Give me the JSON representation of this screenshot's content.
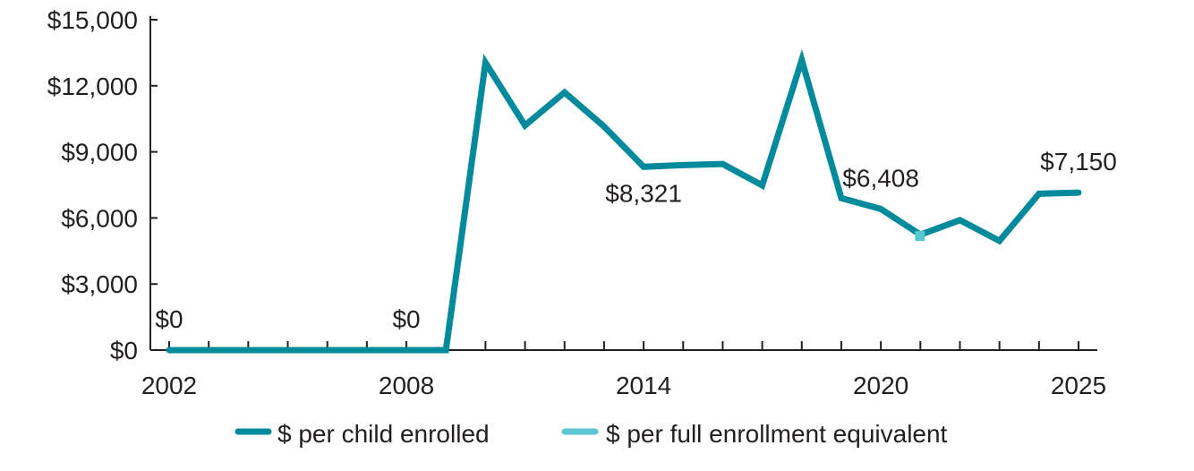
{
  "chart_data": {
    "type": "line",
    "title": "",
    "xlabel": "",
    "ylabel": "",
    "x": [
      2002,
      2003,
      2004,
      2005,
      2006,
      2007,
      2008,
      2009,
      2010,
      2011,
      2012,
      2013,
      2014,
      2015,
      2016,
      2017,
      2018,
      2019,
      2020,
      2021,
      2022,
      2023,
      2024,
      2025
    ],
    "xticks": [
      "2002",
      "2008",
      "2014",
      "2020",
      "2025"
    ],
    "xtick_values": [
      2002,
      2008,
      2014,
      2020,
      2025
    ],
    "ylim": [
      0,
      15000
    ],
    "yticks": [
      0,
      3000,
      6000,
      9000,
      12000,
      15000
    ],
    "ytick_labels": [
      "$0",
      "$3,000",
      "$6,000",
      "$9,000",
      "$12,000",
      "$15,000"
    ],
    "series": [
      {
        "name": "$ per child enrolled",
        "color": "#008a9c",
        "values": [
          0,
          0,
          0,
          0,
          0,
          0,
          0,
          0,
          13050,
          10200,
          11700,
          10150,
          8321,
          8400,
          8450,
          7480,
          13170,
          6900,
          6408,
          5240,
          5900,
          4960,
          7100,
          7150
        ]
      },
      {
        "name": "$ per full enrollment equivalent",
        "color": "#5bc6d2",
        "points": [
          {
            "x": 2021,
            "y": 5240
          }
        ]
      }
    ],
    "annotations": [
      {
        "x": 2002,
        "y": 0,
        "text": "$0",
        "pos": "above"
      },
      {
        "x": 2008,
        "y": 0,
        "text": "$0",
        "pos": "above"
      },
      {
        "x": 2014,
        "y": 8321,
        "text": "$8,321",
        "pos": "below"
      },
      {
        "x": 2020,
        "y": 6408,
        "text": "$6,408",
        "pos": "above"
      },
      {
        "x": 2025,
        "y": 7150,
        "text": "$7,150",
        "pos": "above"
      }
    ],
    "legend": "bottom",
    "grid": false
  }
}
